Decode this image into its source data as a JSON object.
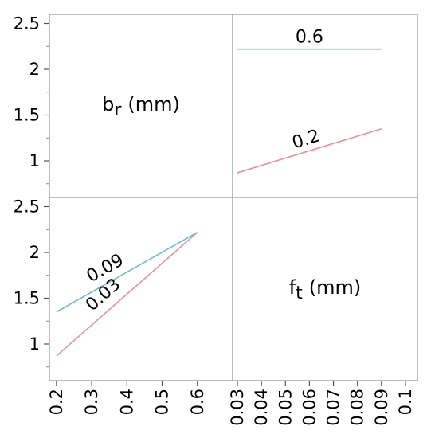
{
  "chart_data": {
    "type": "line",
    "subtype": "interaction-profiler",
    "y_tick_labels": [
      "2.5",
      "2",
      "1.5",
      "1"
    ],
    "y_ticks": [
      2.5,
      2,
      1.5,
      1
    ],
    "ylim": [
      0.6,
      2.6
    ],
    "factors": [
      {
        "name": "b",
        "subscript": "r",
        "unit": "(mm)",
        "x_ticks": [
          0.2,
          0.3,
          0.4,
          0.5,
          0.6
        ],
        "x_tick_labels": [
          "0.2",
          "0.3",
          "0.4",
          "0.5",
          "0.6"
        ],
        "xlim": [
          0.18,
          0.7
        ]
      },
      {
        "name": "f",
        "subscript": "t",
        "unit": "(mm)",
        "x_ticks": [
          0.03,
          0.04,
          0.05,
          0.06,
          0.07,
          0.08,
          0.09,
          0.1
        ],
        "x_tick_labels": [
          "0.03",
          "0.04",
          "0.05",
          "0.06",
          "0.07",
          "0.08",
          "0.09",
          "0.1"
        ],
        "xlim": [
          0.028,
          0.105
        ]
      }
    ],
    "panels": [
      {
        "row": 0,
        "col": 1,
        "x_factor": 1,
        "series": [
          {
            "name": "0.6",
            "color": "#6fb9d3",
            "x": [
              0.03,
              0.09
            ],
            "y": [
              2.22,
              2.22
            ]
          },
          {
            "name": "0.2",
            "color": "#e8909a",
            "x": [
              0.03,
              0.09
            ],
            "y": [
              0.87,
              1.35
            ]
          }
        ]
      },
      {
        "row": 1,
        "col": 0,
        "x_factor": 0,
        "series": [
          {
            "name": "0.09",
            "color": "#6fb9d3",
            "x": [
              0.2,
              0.6
            ],
            "y": [
              1.35,
              2.22
            ]
          },
          {
            "name": "0.03",
            "color": "#e8909a",
            "x": [
              0.2,
              0.6
            ],
            "y": [
              0.87,
              2.22
            ]
          }
        ]
      }
    ]
  }
}
